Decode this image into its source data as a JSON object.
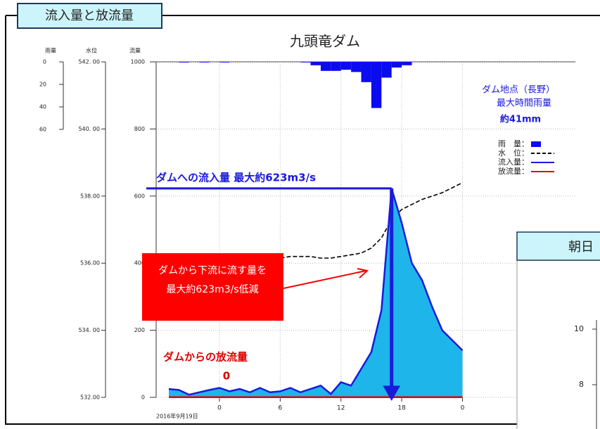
{
  "header": {
    "title": "流入量と放流量"
  },
  "chart_data": [
    {
      "type": "hydrograph",
      "title": "九頭竜ダム",
      "rain_axis": {
        "label": "雨量",
        "lim": [
          0,
          60
        ],
        "ticks": [
          0,
          20,
          40,
          60
        ],
        "inverted": true
      },
      "ylabel": "流量",
      "ylim": [
        0,
        1000
      ],
      "yticks": [
        0,
        200,
        400,
        600,
        800,
        1000
      ],
      "y2label": "水位",
      "y2lim": [
        532,
        542
      ],
      "y2ticks": [
        {
          "value": 542,
          "label": "542. 00"
        },
        {
          "value": 540,
          "label": "540. 00"
        },
        {
          "value": 538,
          "label": "538.00"
        },
        {
          "value": 536,
          "label": "536.00"
        },
        {
          "value": 534,
          "label": "534. 00"
        },
        {
          "value": 532,
          "label": "532.00"
        }
      ],
      "xlim": [
        -6.25,
        35.15
      ],
      "xticks": [
        0,
        6,
        12,
        18,
        {
          "value": 24,
          "label": "0"
        }
      ],
      "xlabel": "2016年9月19日",
      "grid": true,
      "legend": "right",
      "legend_note": [
        "ダム地点（長野）",
        "最大時間雨量",
        "約41mm"
      ],
      "series": [
        {
          "name": "雨　量：",
          "type": "bar",
          "axis": "rain",
          "color": "#0b0bf0",
          "x": [
            -4,
            -3,
            -2,
            -1,
            0,
            1,
            2,
            3,
            4,
            5,
            6,
            7,
            8,
            9,
            10,
            11,
            12,
            13,
            14,
            15,
            16,
            17,
            18
          ],
          "values": [
            0.5,
            0,
            0.5,
            0,
            0.5,
            0,
            0,
            0,
            0,
            0,
            0,
            0,
            0.5,
            3,
            8,
            8,
            7,
            9,
            18,
            41,
            14,
            5,
            3
          ]
        },
        {
          "name": "水　位：",
          "type": "line",
          "axis": "y2",
          "color": "#000000",
          "dash": true,
          "x": [
            -5,
            -4,
            -3,
            -2,
            -1,
            0,
            1,
            2,
            3,
            4,
            5,
            6,
            7,
            8,
            9,
            10,
            11,
            12,
            13,
            14,
            15,
            16,
            17,
            18,
            19,
            20,
            21,
            22,
            23,
            24
          ],
          "values": [
            536.2,
            536.0,
            536.0,
            536.0,
            536.0,
            536.05,
            536.05,
            536.1,
            536.1,
            536.1,
            536.15,
            536.15,
            536.2,
            536.2,
            536.2,
            536.15,
            536.15,
            536.2,
            536.25,
            536.3,
            536.45,
            536.75,
            537.3,
            537.6,
            537.75,
            537.9,
            538.0,
            538.1,
            538.25,
            538.4
          ]
        },
        {
          "name": "流入量：",
          "type": "area",
          "color": "#1a1adb",
          "fill": "#1eb6ea",
          "x": [
            -5,
            -4,
            -3,
            -2,
            -1,
            0,
            1,
            2,
            3,
            4,
            5,
            6,
            7,
            8,
            9,
            10,
            11,
            12,
            13,
            14,
            15,
            16,
            17,
            18,
            19,
            20,
            21,
            22,
            23,
            24
          ],
          "values": [
            25,
            22,
            8,
            15,
            22,
            28,
            18,
            25,
            15,
            28,
            15,
            18,
            28,
            15,
            25,
            35,
            10,
            45,
            35,
            85,
            135,
            260,
            623,
            520,
            400,
            350,
            270,
            200,
            170,
            140
          ]
        },
        {
          "name": "放流量：",
          "type": "line",
          "color": "#e00000",
          "x": [
            -5,
            -4,
            -3,
            -2,
            -1,
            0,
            1,
            2,
            3,
            4,
            5,
            6,
            7,
            8,
            9,
            10,
            11,
            12,
            13,
            14,
            15,
            16,
            17,
            18,
            19,
            20,
            21,
            22,
            23,
            24
          ],
          "values": [
            0,
            0,
            0,
            0,
            0,
            0,
            0,
            0,
            0,
            0,
            0,
            0,
            0,
            0,
            0,
            0,
            0,
            0,
            0,
            0,
            0,
            0,
            0,
            0,
            0,
            0,
            0,
            0,
            0,
            0
          ]
        }
      ],
      "inflow_note": "ダムへの流入量  最大約623m3/s",
      "reduction_note": [
        "ダムから下流に流す量を",
        "最大約623m3/s低減"
      ],
      "outflow_note": "ダムからの放流量",
      "outflow_value": 0
    },
    {
      "type": "line",
      "title": "朝日",
      "ylim": [
        8,
        10
      ],
      "yticks": [
        10,
        8
      ]
    }
  ]
}
